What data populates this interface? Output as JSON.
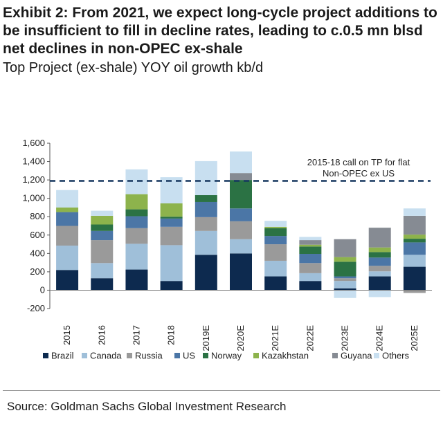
{
  "header": {
    "title": "Exhibit 2: From 2021, we expect long-cycle project additions to be insufficient to fill in decline rates, leading to c.0.5 mn blsd net declines in non-OPEC ex-shale",
    "subtitle": "Top Project (ex-shale) YOY oil growth kb/d"
  },
  "footer": {
    "source": "Source: Goldman Sachs Global Investment Research"
  },
  "chart_data": {
    "type": "bar",
    "stacked": true,
    "categories": [
      "2015",
      "2016",
      "2017",
      "2018",
      "2019E",
      "2020E",
      "2021E",
      "2022E",
      "2023E",
      "2024E",
      "2025E"
    ],
    "ylim": [
      -200,
      1600
    ],
    "yticks": [
      -200,
      0,
      200,
      400,
      600,
      800,
      1000,
      1200,
      1400,
      1600
    ],
    "ytick_labels": [
      "-200",
      "0",
      "200",
      "400",
      "600",
      "800",
      "1,000",
      "1,200",
      "1,400",
      "1,600"
    ],
    "series": [
      {
        "name": "Brazil",
        "color": "#0d2a4f",
        "values": [
          220,
          130,
          225,
          100,
          385,
          400,
          150,
          100,
          20,
          150,
          255
        ]
      },
      {
        "name": "Canada",
        "color": "#9fbfd9",
        "values": [
          265,
          165,
          280,
          390,
          260,
          155,
          170,
          85,
          80,
          55,
          130
        ]
      },
      {
        "name": "Russia",
        "color": "#9a9a9a",
        "values": [
          215,
          250,
          170,
          200,
          150,
          195,
          180,
          110,
          30,
          60,
          -30
        ]
      },
      {
        "name": "US",
        "color": "#4b76a6",
        "values": [
          150,
          100,
          130,
          90,
          165,
          140,
          90,
          100,
          20,
          90,
          135
        ]
      },
      {
        "name": "Norway",
        "color": "#2b7244",
        "values": [
          0,
          70,
          75,
          20,
          75,
          310,
          85,
          80,
          160,
          60,
          40
        ]
      },
      {
        "name": "Kazakhstan",
        "color": "#8db34c",
        "values": [
          50,
          95,
          165,
          145,
          0,
          0,
          15,
          20,
          50,
          50,
          45
        ]
      },
      {
        "name": "Guyana",
        "color": "#868b93",
        "values": [
          0,
          0,
          0,
          0,
          0,
          75,
          0,
          50,
          195,
          215,
          205
        ]
      },
      {
        "name": "Others",
        "color": "#c8dff0",
        "values": [
          190,
          55,
          270,
          285,
          370,
          235,
          65,
          35,
          -85,
          -75,
          80
        ]
      }
    ],
    "reference_line": {
      "value": 1190,
      "label_lines": [
        "2015-18 call on TP for flat",
        "Non-OPEC ex US"
      ],
      "color": "#15365f",
      "style": "dashed"
    },
    "grid": false,
    "legend_position": "bottom"
  }
}
